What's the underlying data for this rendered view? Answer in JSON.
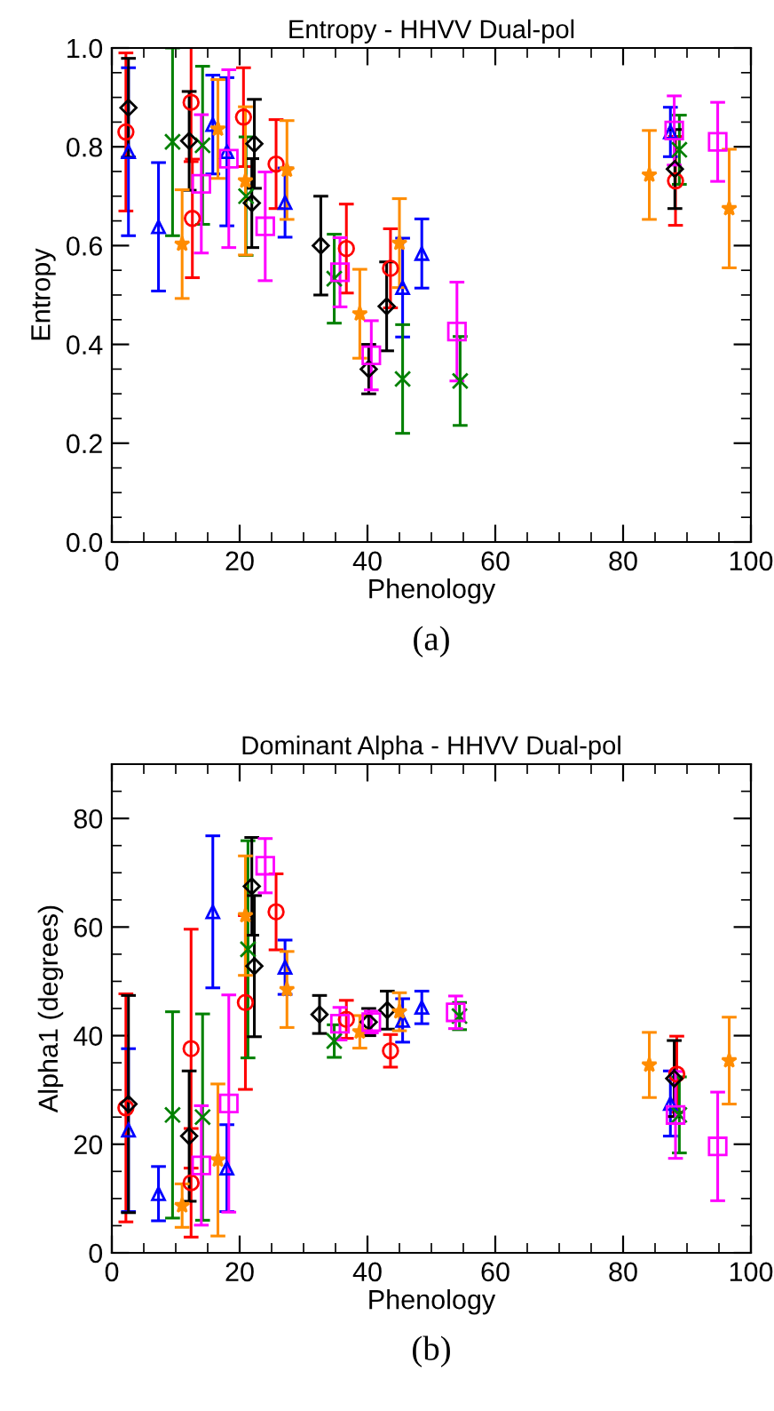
{
  "chart_data": [
    {
      "type": "scatter",
      "title": "Entropy - HHVV Dual-pol",
      "xlabel": "Phenology",
      "ylabel": "Entropy",
      "annotations": [
        "(a)"
      ],
      "xlim": [
        0,
        100
      ],
      "xticks": [
        0,
        20,
        40,
        60,
        80,
        100
      ],
      "ylim": [
        0,
        1
      ],
      "yticks": [
        {
          "value": 0,
          "label": "0.0"
        },
        {
          "value": 0.2,
          "label": "0.2"
        },
        {
          "value": 0.4,
          "label": "0.4"
        },
        {
          "value": 0.6,
          "label": "0.6"
        },
        {
          "value": 0.8,
          "label": "0.8"
        },
        {
          "value": 1,
          "label": "1.0"
        }
      ],
      "grid": false,
      "series": [
        {
          "color": "#ff0000",
          "marker": "circle",
          "x": [
            2.2,
            12.4,
            12.6,
            20.6,
            25.7,
            36.7,
            43.6,
            88.2
          ],
          "values": [
            0.83,
            0.89,
            0.655,
            0.86,
            0.765,
            0.594,
            0.554,
            0.731
          ],
          "errors": [
            0.16,
            0.12,
            0.12,
            0.1,
            0.09,
            0.09,
            0.08,
            0.09
          ]
        },
        {
          "color": "#0000ff",
          "marker": "triangle",
          "x": [
            2.6,
            7.3,
            15.8,
            18.0,
            27.1,
            45.5,
            48.5,
            87.4
          ],
          "values": [
            0.79,
            0.638,
            0.845,
            0.79,
            0.687,
            0.515,
            0.584,
            0.83
          ],
          "errors": [
            0.17,
            0.13,
            0.1,
            0.15,
            0.07,
            0.1,
            0.07,
            0.05
          ]
        },
        {
          "color": "#008000",
          "marker": "cross",
          "x": [
            9.5,
            14.2,
            21.0,
            34.8,
            45.5,
            54.5,
            88.8
          ],
          "values": [
            0.81,
            0.803,
            0.7,
            0.533,
            0.33,
            0.326,
            0.794
          ],
          "errors": [
            0.19,
            0.16,
            0.12,
            0.09,
            0.11,
            0.09,
            0.07
          ]
        },
        {
          "color": "#000000",
          "marker": "diamond",
          "x": [
            2.6,
            12.1,
            21.9,
            22.3,
            32.7,
            40.2,
            43.0,
            88.1
          ],
          "values": [
            0.879,
            0.812,
            0.686,
            0.806,
            0.6,
            0.35,
            0.477,
            0.755
          ],
          "errors": [
            0.1,
            0.1,
            0.09,
            0.09,
            0.1,
            0.05,
            0.09,
            0.08
          ]
        },
        {
          "color": "#ff8c00",
          "marker": "star",
          "x": [
            11.0,
            16.6,
            20.9,
            27.4,
            38.8,
            45.0,
            84.1,
            96.6
          ],
          "values": [
            0.603,
            0.836,
            0.731,
            0.753,
            0.462,
            0.605,
            0.743,
            0.675
          ],
          "errors": [
            0.11,
            0.1,
            0.15,
            0.1,
            0.09,
            0.09,
            0.09,
            0.12
          ]
        },
        {
          "color": "#ff00ff",
          "marker": "square",
          "x": [
            14.0,
            18.3,
            24.0,
            35.7,
            40.6,
            54.0,
            88.0,
            94.8
          ],
          "values": [
            0.725,
            0.776,
            0.639,
            0.546,
            0.378,
            0.426,
            0.833,
            0.81
          ],
          "errors": [
            0.14,
            0.18,
            0.11,
            0.07,
            0.07,
            0.1,
            0.07,
            0.08
          ]
        }
      ]
    },
    {
      "type": "scatter",
      "title": "Dominant Alpha - HHVV Dual-pol",
      "xlabel": "Phenology",
      "ylabel": "Alpha1 (degrees)",
      "annotations": [
        "(b)"
      ],
      "xlim": [
        0,
        100
      ],
      "xticks": [
        0,
        20,
        40,
        60,
        80,
        100
      ],
      "ylim": [
        0,
        90
      ],
      "yticks": [
        0,
        20,
        40,
        60,
        80
      ],
      "grid": false,
      "series": [
        {
          "color": "#ff0000",
          "marker": "circle",
          "x": [
            2.2,
            12.4,
            12.4,
            20.9,
            25.7,
            36.7,
            43.6,
            88.4
          ],
          "values": [
            26.7,
            37.6,
            12.9,
            46.1,
            62.8,
            43.0,
            37.2,
            32.9
          ],
          "errors": [
            21,
            22,
            10,
            16,
            7,
            3.5,
            3,
            7
          ]
        },
        {
          "color": "#0000ff",
          "marker": "triangle",
          "x": [
            2.6,
            7.3,
            15.8,
            18.0,
            27.1,
            45.5,
            48.5,
            87.4
          ],
          "values": [
            22.6,
            10.9,
            62.8,
            15.6,
            52.6,
            42.8,
            45.2,
            27.5
          ],
          "errors": [
            15,
            5,
            14,
            8,
            5,
            4,
            3,
            6
          ]
        },
        {
          "color": "#008000",
          "marker": "cross",
          "x": [
            9.5,
            14.2,
            21.3,
            34.8,
            54.4,
            88.8
          ],
          "values": [
            25.4,
            25.0,
            55.9,
            39.0,
            43.6,
            25.4
          ],
          "errors": [
            19,
            19,
            20,
            3,
            2.5,
            7
          ]
        },
        {
          "color": "#000000",
          "marker": "diamond",
          "x": [
            2.6,
            12.1,
            21.9,
            22.3,
            32.5,
            40.2,
            43.1,
            88.0
          ],
          "values": [
            27.4,
            21.5,
            67.5,
            52.8,
            43.9,
            42.5,
            44.7,
            32.1
          ],
          "errors": [
            20,
            12,
            9,
            13,
            3.5,
            2.5,
            3.5,
            7
          ]
        },
        {
          "color": "#ff8c00",
          "marker": "star",
          "x": [
            11.0,
            16.6,
            20.9,
            27.4,
            38.8,
            45.0,
            84.1,
            96.6
          ],
          "values": [
            8.7,
            17.1,
            62.1,
            48.5,
            40.7,
            44.4,
            34.6,
            35.4
          ],
          "errors": [
            4,
            14,
            11,
            7,
            3,
            3.5,
            6,
            8
          ]
        },
        {
          "color": "#ff00ff",
          "marker": "square",
          "x": [
            14.0,
            18.3,
            24.0,
            35.7,
            40.6,
            53.8,
            88.2,
            94.8
          ],
          "values": [
            16.1,
            27.5,
            71.3,
            42.2,
            42.5,
            44.3,
            25.4,
            19.6
          ],
          "errors": [
            11,
            20,
            5,
            3,
            2,
            3,
            8,
            10
          ]
        }
      ]
    }
  ]
}
